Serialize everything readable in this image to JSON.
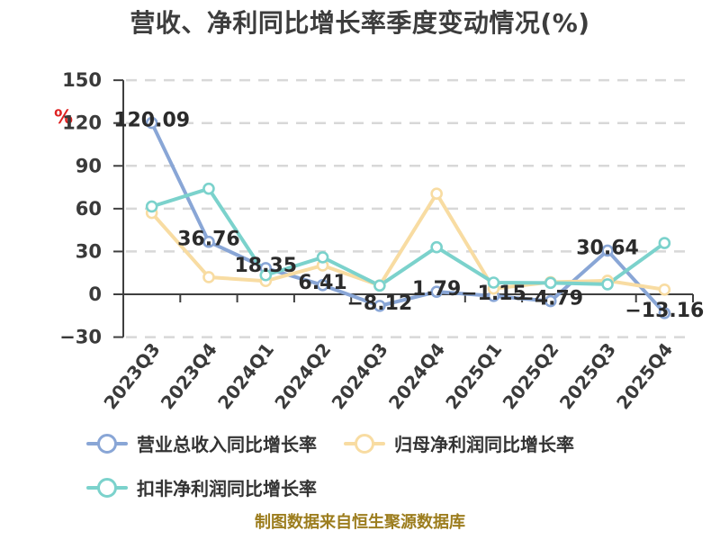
{
  "source_note": "制图数据来自恒生聚源数据库",
  "colors": {
    "axis": "#3f3f3f",
    "grid": "#d8d8d8",
    "tick_text": "#3a3a3a",
    "data_label_text": "#2b2b2b",
    "title_text": "#3d3d3d",
    "unit_label": "#de2121",
    "source_note_text": "#9c7d1e",
    "marker_fill": "#ffffff",
    "background": "#ffffff"
  },
  "chart_data": {
    "type": "line",
    "title": "营收、净利同比增长率季度变动情况(%)",
    "unit": "%",
    "categories": [
      "2023Q3",
      "2023Q4",
      "2024Q1",
      "2024Q2",
      "2024Q3",
      "2024Q4",
      "2025Q1",
      "2025Q2",
      "2025Q3",
      "2025Q4"
    ],
    "series": [
      {
        "name": "营业总收入同比增长率",
        "color": "#89a6d6",
        "values": [
          120.09,
          36.76,
          18.35,
          6.41,
          -8.12,
          1.79,
          -1.15,
          -4.79,
          30.64,
          -13.16
        ],
        "labels": [
          "120.09",
          "36.76",
          "18.35",
          "6.41",
          "−8.12",
          "1.79",
          "−1.15",
          "−4.79",
          "30.64",
          "−13.16"
        ]
      },
      {
        "name": "归母净利润同比增长率",
        "color": "#f8dca2",
        "values": [
          57,
          12,
          9.3,
          20.2,
          6.2,
          70.5,
          4,
          8.5,
          9.5,
          3.3
        ]
      },
      {
        "name": "扣非净利润同比增长率",
        "color": "#7bd2cc",
        "values": [
          61.5,
          74,
          13.4,
          25.9,
          6.1,
          33,
          8.2,
          8,
          7,
          35.9
        ]
      }
    ],
    "yticks": [
      150,
      120,
      90,
      60,
      30,
      0,
      -30
    ],
    "ylim": [
      -30,
      150
    ],
    "grid": "dashed-horizontal",
    "x_tick_position": "category-boundaries",
    "x_label_rotation_deg": -52,
    "legend_position": "bottom-left",
    "labeled_series": "营业总收入同比增长率"
  }
}
